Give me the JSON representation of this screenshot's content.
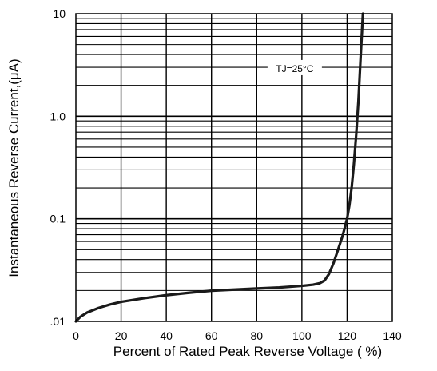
{
  "chart_data": {
    "type": "line",
    "title": "",
    "xlabel": "Percent of Rated Peak Reverse Voltage ( %)",
    "ylabel": "Instantaneous Reverse Current,(μA)",
    "xlim": [
      0,
      140
    ],
    "ylim": [
      0.01,
      10
    ],
    "yscale": "log",
    "grid": true,
    "x_ticks": [
      {
        "value": 0,
        "label": "0"
      },
      {
        "value": 20,
        "label": "20"
      },
      {
        "value": 40,
        "label": "40"
      },
      {
        "value": 60,
        "label": "60"
      },
      {
        "value": 80,
        "label": "80"
      },
      {
        "value": 100,
        "label": "100"
      },
      {
        "value": 120,
        "label": "120"
      },
      {
        "value": 140,
        "label": "140"
      }
    ],
    "y_ticks": [
      {
        "value": 0.01,
        "label": ".01"
      },
      {
        "value": 0.1,
        "label": "0.1"
      },
      {
        "value": 1,
        "label": "1.0"
      },
      {
        "value": 10,
        "label": "10"
      }
    ],
    "annotations": [
      {
        "text": "TJ=25°C",
        "x": 94,
        "y": 2.8
      }
    ],
    "series": [
      {
        "color": "#1a1a1a",
        "x": [
          0,
          2,
          5,
          10,
          15,
          20,
          30,
          40,
          50,
          60,
          70,
          80,
          90,
          100,
          105,
          108,
          110,
          112,
          114,
          116,
          118,
          120,
          121,
          122,
          123,
          124,
          125,
          126,
          127
        ],
        "y": [
          0.01,
          0.0111,
          0.0122,
          0.0135,
          0.0146,
          0.0155,
          0.0168,
          0.018,
          0.019,
          0.0199,
          0.0204,
          0.0209,
          0.0214,
          0.0222,
          0.0228,
          0.0236,
          0.025,
          0.029,
          0.037,
          0.05,
          0.068,
          0.1,
          0.135,
          0.2,
          0.34,
          0.65,
          1.4,
          3.8,
          10.0
        ]
      }
    ]
  }
}
